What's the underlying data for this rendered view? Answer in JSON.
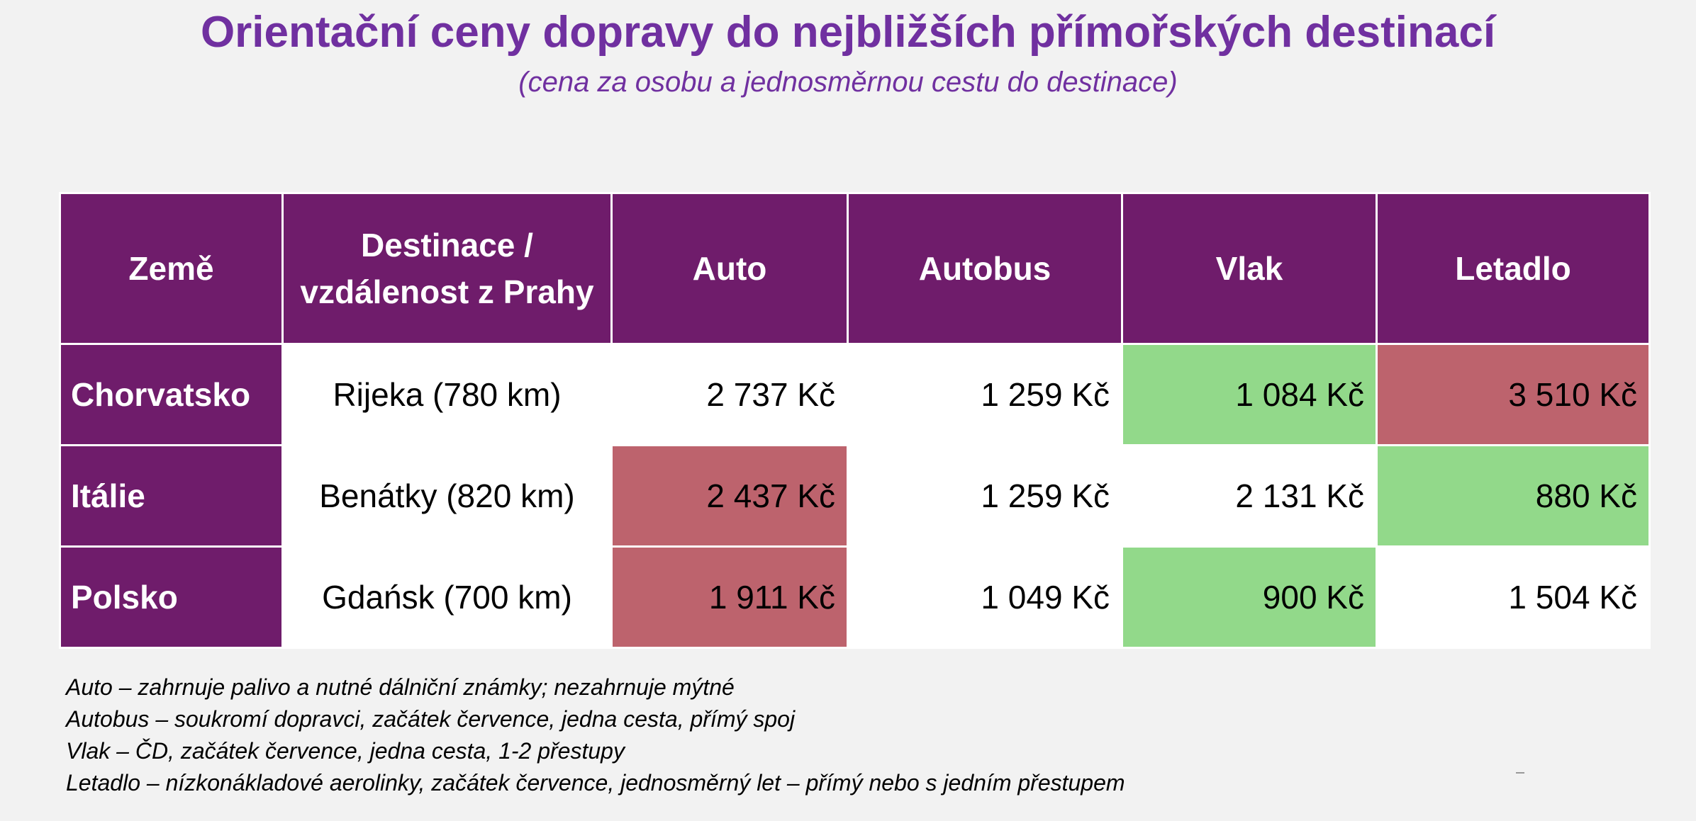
{
  "title": "Orientační ceny dopravy do nejbližších přímořských destinací",
  "subtitle": "(cena za osobu a jednosměrnou cestu do destinace)",
  "table": {
    "headers": {
      "country": "Země",
      "destination_line1": "Destinace /",
      "destination_line2": "vzdálenost z Prahy",
      "car": "Auto",
      "bus": "Autobus",
      "train": "Vlak",
      "plane": "Letadlo"
    },
    "rows": [
      {
        "country": "Chorvatsko",
        "destination": "Rijeka (780 km)",
        "car": "2 737 Kč",
        "bus": "1 259 Kč",
        "train": "1 084 Kč",
        "plane": "3 510 Kč"
      },
      {
        "country": "Itálie",
        "destination": "Benátky (820 km)",
        "car": "2 437 Kč",
        "bus": "1 259 Kč",
        "train": "2 131 Kč",
        "plane": "880 Kč"
      },
      {
        "country": "Polsko",
        "destination": "Gdańsk (700 km)",
        "car": "1 911 Kč",
        "bus": "1 049 Kč",
        "train": "900 Kč",
        "plane": "1 504 Kč"
      }
    ]
  },
  "colors": {
    "title_purple": "#7030a0",
    "header_background": "#6f1c6b",
    "cheapest_highlight": "#92d98a",
    "most_expensive_highlight": "#bd636d"
  },
  "notes": [
    "Auto – zahrnuje palivo a nutné dálniční známky; nezahrnuje mýtné",
    "Autobus – soukromí dopravci, začátek července, jedna cesta, přímý spoj",
    "Vlak – ČD, začátek července, jedna cesta, 1-2 přestupy",
    "Letadlo – nízkonákladové aerolinky, začátek července, jednosměrný let – přímý nebo s jedním přestupem"
  ]
}
